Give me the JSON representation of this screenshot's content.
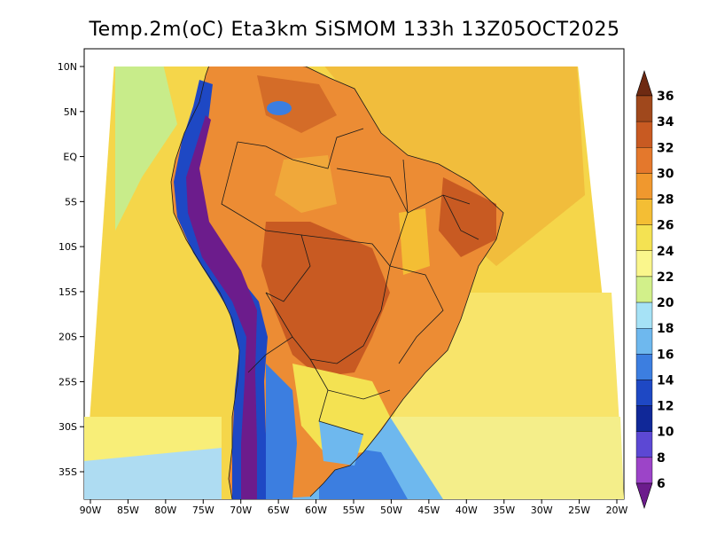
{
  "title": "Temp.2m(oC) Eta3km SiSMOM 133h 13Z05OCT2025",
  "map": {
    "lon_range": [
      -90,
      -20
    ],
    "lat_range": [
      -37,
      11
    ],
    "lon_ticks": [
      "90W",
      "85W",
      "80W",
      "75W",
      "70W",
      "65W",
      "60W",
      "55W",
      "50W",
      "45W",
      "40W",
      "35W",
      "30W",
      "25W",
      "20W"
    ],
    "lat_ticks": [
      "10N",
      "5N",
      "EQ",
      "5S",
      "10S",
      "15S",
      "20S",
      "25S",
      "30S",
      "35S"
    ],
    "ocean_color": "#f5d64a",
    "land_base_color": "#ec8c34"
  },
  "colorbar": {
    "labels": [
      "36",
      "34",
      "32",
      "30",
      "28",
      "26",
      "24",
      "22",
      "20",
      "18",
      "16",
      "14",
      "12",
      "10",
      "8",
      "6"
    ],
    "colors": [
      "#6e2a12",
      "#a0481c",
      "#c85a22",
      "#e4782c",
      "#f0982e",
      "#f4be34",
      "#f4e252",
      "#faf68c",
      "#d2f08a",
      "#a6e2f6",
      "#6eb8ee",
      "#3c7ee0",
      "#1e48c4",
      "#102898",
      "#5c48d4",
      "#9c44c8",
      "#6c1c8c"
    ]
  }
}
